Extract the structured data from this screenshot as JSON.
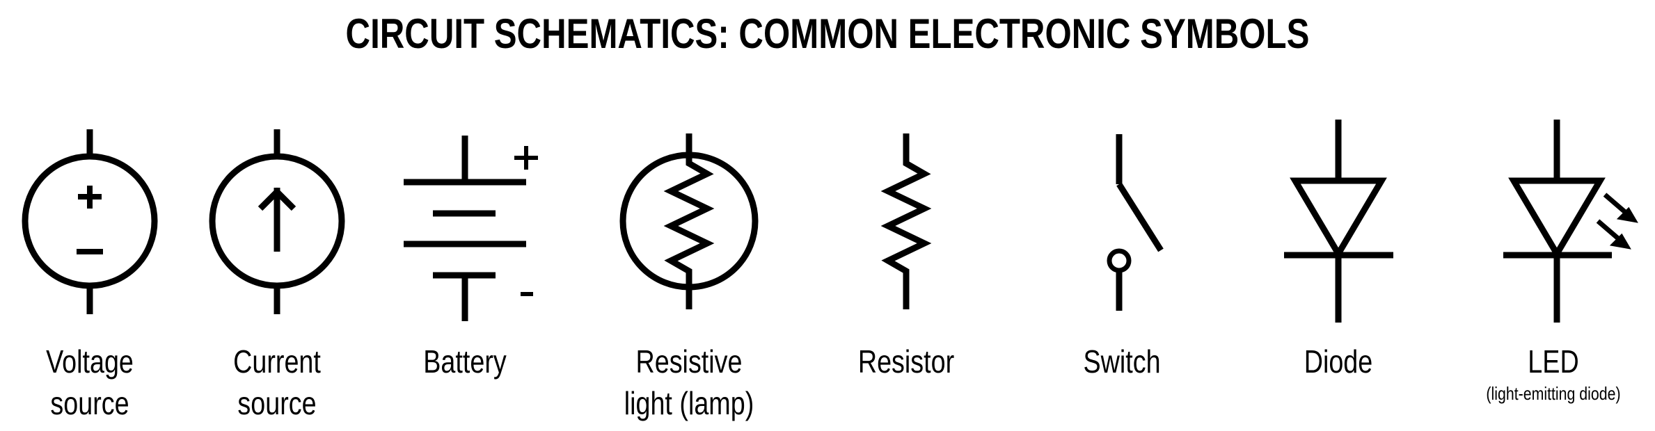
{
  "title": "CIRCUIT SCHEMATICS: COMMON ELECTRONIC SYMBOLS",
  "symbols": [
    {
      "line1": "Voltage",
      "line2": "source",
      "marks": {
        "plus": "+",
        "minus": "−"
      }
    },
    {
      "line1": "Current",
      "line2": "source"
    },
    {
      "line1": "Battery",
      "marks": {
        "plus": "+",
        "minus": "-"
      }
    },
    {
      "line1": "Resistive",
      "line2": "light (lamp)"
    },
    {
      "line1": "Resistor"
    },
    {
      "line1": "Switch"
    },
    {
      "line1": "Diode"
    },
    {
      "line1": "LED",
      "sub": "(light-emitting diode)"
    }
  ]
}
